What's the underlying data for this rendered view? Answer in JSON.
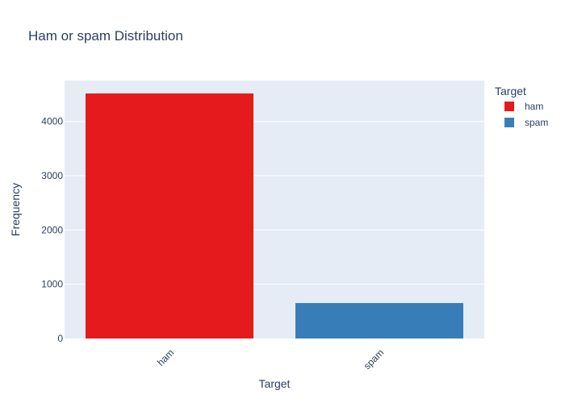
{
  "chart_data": {
    "type": "bar",
    "title": "Ham or spam Distribution",
    "xlabel": "Target",
    "ylabel": "Frequency",
    "categories": [
      "ham",
      "spam"
    ],
    "values": [
      4516,
      653
    ],
    "ylim": [
      0,
      4753
    ],
    "yticks": [
      0,
      1000,
      2000,
      3000,
      4000
    ],
    "grid": true,
    "legend": {
      "title": "Target",
      "placement": "top-right",
      "entries": [
        "ham",
        "spam"
      ]
    },
    "colors": {
      "ham": "#e41a1c",
      "spam": "#377eb8",
      "plot_background": "#e5ecf6",
      "gridline": "#ffffff",
      "text": "#2a3f5f"
    }
  }
}
